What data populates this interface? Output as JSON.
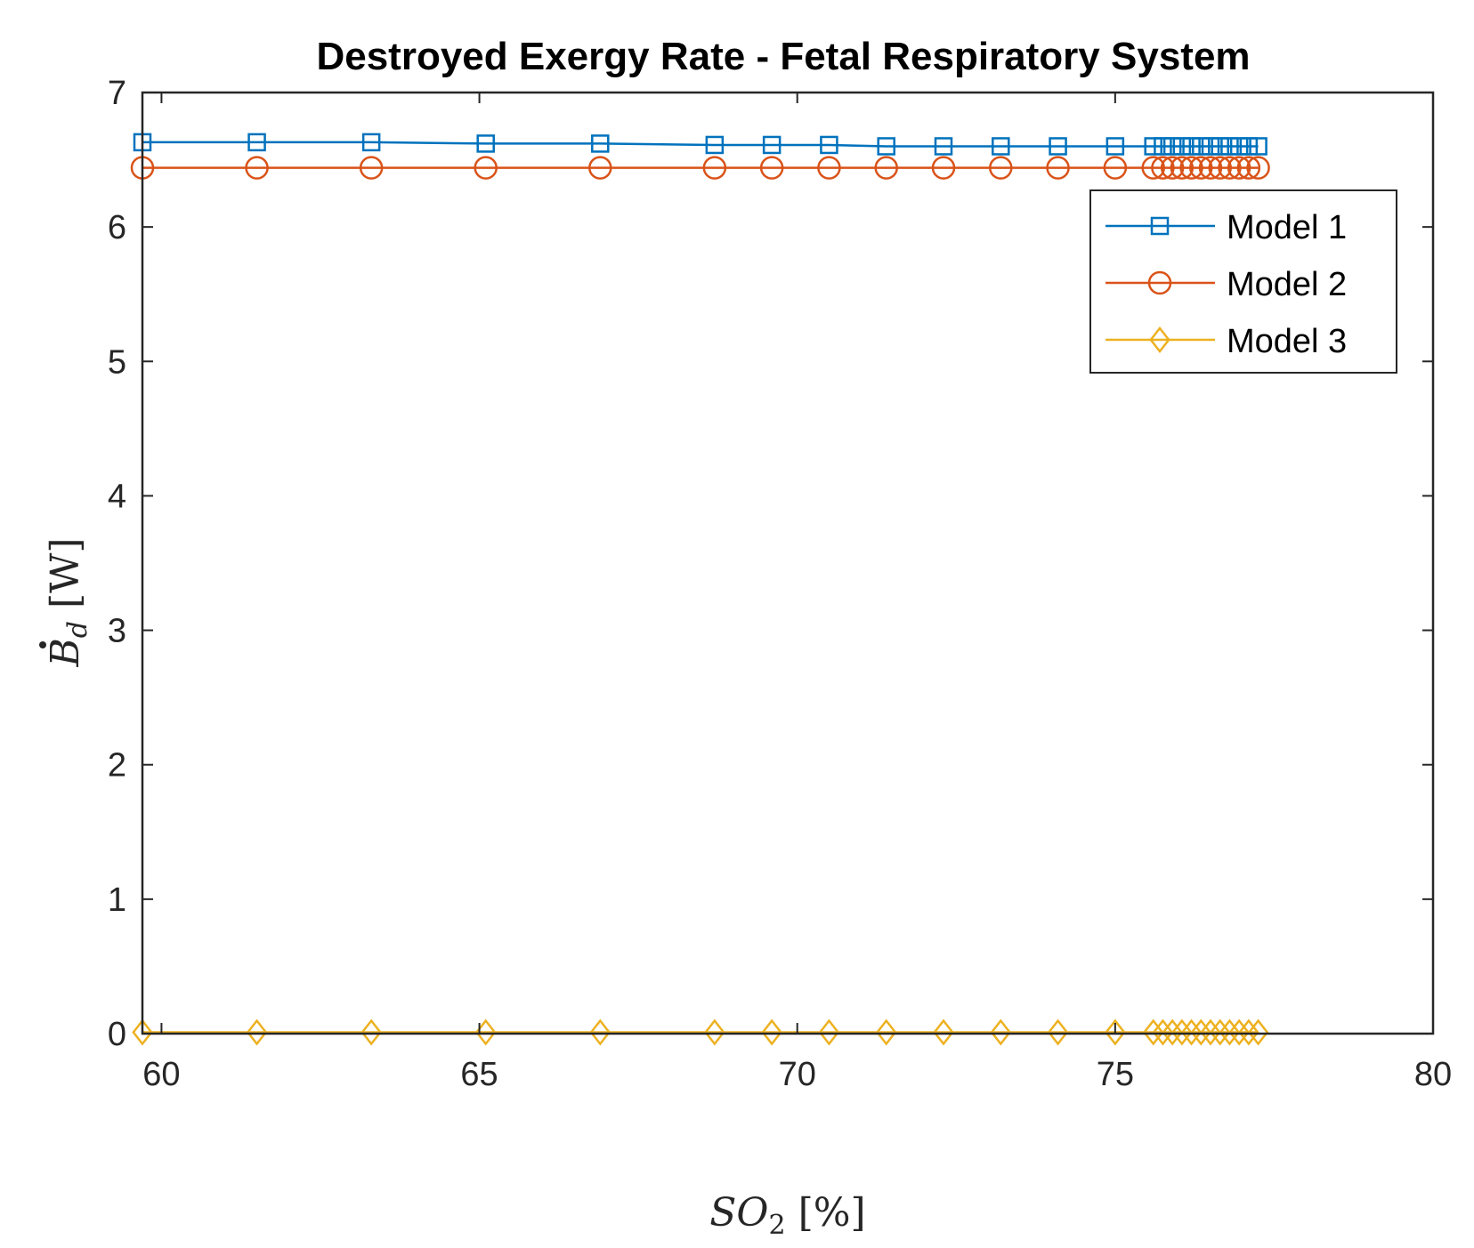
{
  "chart_data": {
    "type": "line",
    "title": "Destroyed Exergy Rate - Fetal Respiratory System",
    "xlabel": "SO₂ [%]",
    "ylabel": "Ḃd [W]",
    "xlim": [
      59.7,
      80
    ],
    "ylim": [
      0,
      7
    ],
    "xticks": [
      60,
      65,
      70,
      75,
      80
    ],
    "yticks": [
      0,
      1,
      2,
      3,
      4,
      5,
      6,
      7
    ],
    "xtick_labels": [
      "60",
      "65",
      "70",
      "75",
      "80"
    ],
    "ytick_labels": [
      "0",
      "1",
      "2",
      "3",
      "4",
      "5",
      "6",
      "7"
    ],
    "grid": false,
    "legend_position": "top-right",
    "x": [
      59.7,
      61.5,
      63.3,
      65.1,
      66.9,
      68.7,
      69.6,
      70.5,
      71.4,
      72.3,
      73.2,
      74.1,
      75.0,
      75.6,
      75.75,
      75.9,
      76.05,
      76.2,
      76.35,
      76.5,
      76.65,
      76.8,
      76.95,
      77.1,
      77.25
    ],
    "series": [
      {
        "name": "Model 1",
        "color": "#0072BD",
        "marker": "square",
        "values": [
          6.63,
          6.63,
          6.63,
          6.62,
          6.62,
          6.61,
          6.61,
          6.61,
          6.6,
          6.6,
          6.6,
          6.6,
          6.6,
          6.6,
          6.6,
          6.6,
          6.6,
          6.6,
          6.6,
          6.6,
          6.6,
          6.6,
          6.6,
          6.6,
          6.6
        ]
      },
      {
        "name": "Model 2",
        "color": "#D95319",
        "marker": "circle",
        "values": [
          6.44,
          6.44,
          6.44,
          6.44,
          6.44,
          6.44,
          6.44,
          6.44,
          6.44,
          6.44,
          6.44,
          6.44,
          6.44,
          6.44,
          6.44,
          6.44,
          6.44,
          6.44,
          6.44,
          6.44,
          6.44,
          6.44,
          6.44,
          6.44,
          6.44
        ]
      },
      {
        "name": "Model 3",
        "color": "#EDB120",
        "marker": "diamond",
        "values": [
          0.01,
          0.01,
          0.01,
          0.01,
          0.01,
          0.01,
          0.01,
          0.01,
          0.01,
          0.01,
          0.01,
          0.01,
          0.01,
          0.01,
          0.01,
          0.01,
          0.01,
          0.01,
          0.01,
          0.01,
          0.01,
          0.01,
          0.01,
          0.01,
          0.01
        ]
      }
    ]
  }
}
